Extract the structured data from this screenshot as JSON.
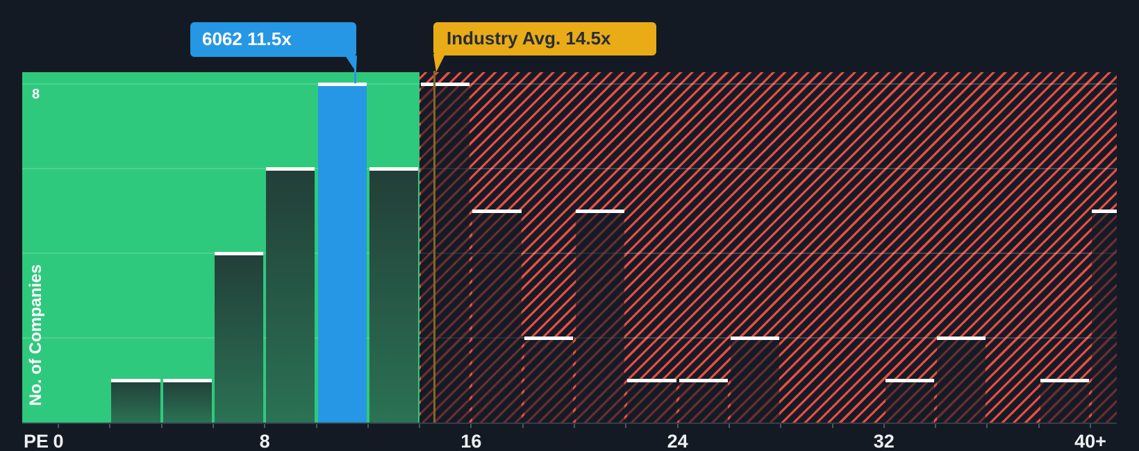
{
  "chart_data": {
    "type": "bar",
    "subtype": "histogram",
    "xlabel": "PE",
    "ylabel": "No. of Companies",
    "x_tick_labels": [
      {
        "pe": 0,
        "label": "0"
      },
      {
        "pe": 8,
        "label": "8"
      },
      {
        "pe": 16,
        "label": "16"
      },
      {
        "pe": 24,
        "label": "24"
      },
      {
        "pe": 32,
        "label": "32"
      },
      {
        "pe": 40,
        "label": "40+"
      }
    ],
    "y_axis": {
      "visible_tick_label": "8",
      "max": 8,
      "gridline_counts": [
        2,
        4,
        6,
        8
      ]
    },
    "bin_width": 2,
    "bins": [
      {
        "start": 0,
        "end": 2,
        "count": 0
      },
      {
        "start": 2,
        "end": 4,
        "count": 1
      },
      {
        "start": 4,
        "end": 6,
        "count": 1
      },
      {
        "start": 6,
        "end": 8,
        "count": 4
      },
      {
        "start": 8,
        "end": 10,
        "count": 6
      },
      {
        "start": 10,
        "end": 12,
        "count": 8,
        "highlight": true
      },
      {
        "start": 12,
        "end": 14,
        "count": 6
      },
      {
        "start": 14,
        "end": 16,
        "count": 8
      },
      {
        "start": 16,
        "end": 18,
        "count": 5
      },
      {
        "start": 18,
        "end": 20,
        "count": 2
      },
      {
        "start": 20,
        "end": 22,
        "count": 5
      },
      {
        "start": 22,
        "end": 24,
        "count": 1
      },
      {
        "start": 24,
        "end": 26,
        "count": 1
      },
      {
        "start": 26,
        "end": 28,
        "count": 2
      },
      {
        "start": 28,
        "end": 30,
        "count": 0
      },
      {
        "start": 30,
        "end": 32,
        "count": 0
      },
      {
        "start": 32,
        "end": 34,
        "count": 1
      },
      {
        "start": 34,
        "end": 36,
        "count": 2
      },
      {
        "start": 36,
        "end": 38,
        "count": 0
      },
      {
        "start": 38,
        "end": 40,
        "count": 1
      },
      {
        "start": 40,
        "end": "open",
        "count": 5,
        "open_ended": true
      }
    ],
    "highlight_bar": {
      "bin_start": 10,
      "callout_label": "6062 11.5x",
      "pe_value": 11.5,
      "color": "#2697e4"
    },
    "industry_avg": {
      "callout_label": "Industry Avg. 14.5x",
      "pe_value": 14.5,
      "flag_color": "#e9ab16",
      "line_color": "#856725"
    },
    "zones": {
      "below_avg_color": "#2fc97d",
      "above_avg_hatch_stripe_color": "#ec4c45",
      "above_avg_base_color": "#161c26"
    },
    "colors": {
      "background": "#141a23",
      "bar_cap": "#ffffff",
      "dark_bar_top": "#223e38",
      "dark_bar_bottom": "#2b7254"
    }
  }
}
